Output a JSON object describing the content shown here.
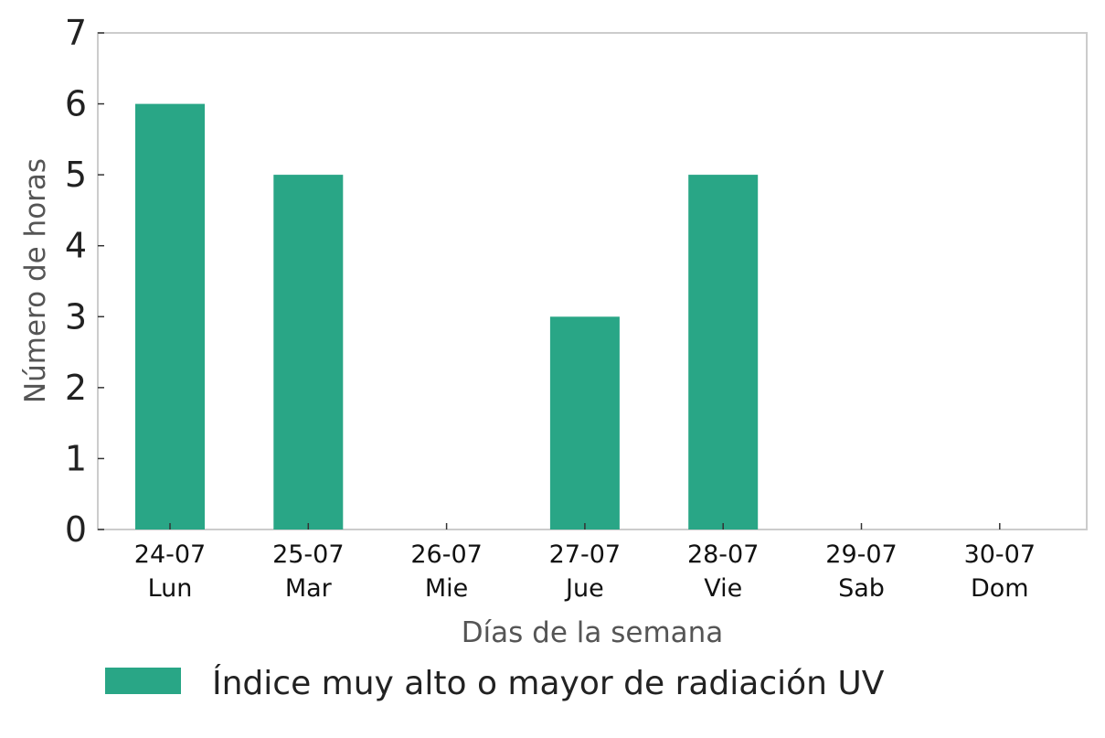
{
  "chart_data": {
    "type": "bar",
    "categories": [
      [
        "24-07",
        "Lun"
      ],
      [
        "25-07",
        "Mar"
      ],
      [
        "26-07",
        "Mie"
      ],
      [
        "27-07",
        "Jue"
      ],
      [
        "28-07",
        "Vie"
      ],
      [
        "29-07",
        "Sab"
      ],
      [
        "30-07",
        "Dom"
      ]
    ],
    "series": [
      {
        "name": "Índice muy alto o mayor de radiación UV",
        "values": [
          6,
          5,
          0,
          3,
          5,
          0,
          0
        ],
        "color": "#29a686"
      }
    ],
    "xlabel": "Días de la semana",
    "ylabel": "Número de horas",
    "ylim": [
      0,
      7
    ],
    "yticks": [
      0,
      1,
      2,
      3,
      4,
      5,
      6,
      7
    ],
    "grid": false,
    "legend_position": "bottom-left",
    "frame_color": "#cccccc"
  }
}
